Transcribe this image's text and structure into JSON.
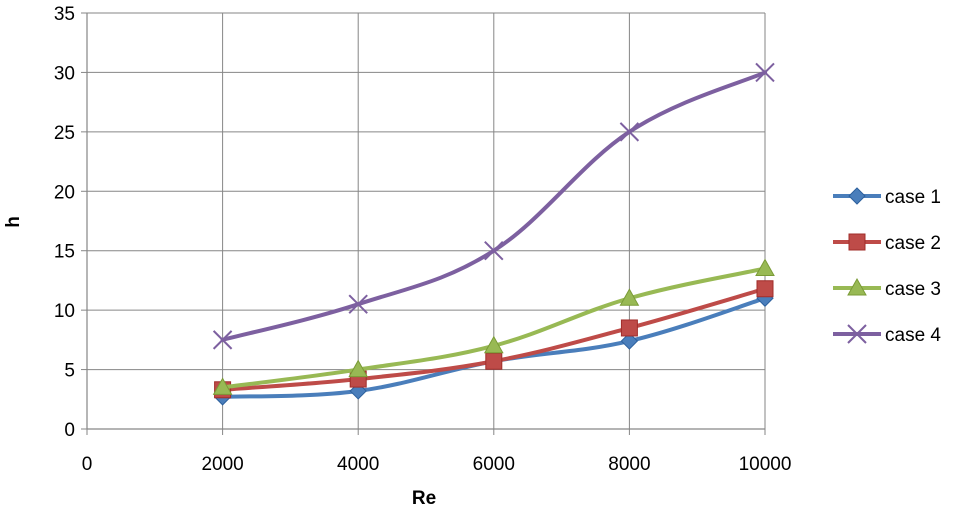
{
  "chart_data": {
    "type": "scatter",
    "title": "",
    "xlabel": "Re",
    "ylabel": "h",
    "xlim": [
      0,
      10000
    ],
    "ylim": [
      0,
      35
    ],
    "xticks": [
      0,
      2000,
      4000,
      6000,
      8000,
      10000
    ],
    "yticks": [
      0,
      5,
      10,
      15,
      20,
      25,
      30,
      35
    ],
    "grid": true,
    "smooth_lines": true,
    "legend_position": "right",
    "x": [
      2000,
      4000,
      6000,
      8000,
      10000
    ],
    "series": [
      {
        "name": "case 1",
        "color": "#4A7EBB",
        "marker": "diamond",
        "values": [
          2.7,
          3.2,
          5.7,
          7.4,
          11.0
        ]
      },
      {
        "name": "case 2",
        "color": "#BE4B48",
        "marker": "square",
        "values": [
          3.3,
          4.2,
          5.7,
          8.5,
          11.8
        ]
      },
      {
        "name": "case 3",
        "color": "#98B954",
        "marker": "triangle",
        "values": [
          3.5,
          5.0,
          7.0,
          11.0,
          13.5
        ]
      },
      {
        "name": "case 4",
        "color": "#7D60A0",
        "marker": "cross",
        "values": [
          7.5,
          10.5,
          15.0,
          25.0,
          30.0
        ]
      }
    ]
  }
}
